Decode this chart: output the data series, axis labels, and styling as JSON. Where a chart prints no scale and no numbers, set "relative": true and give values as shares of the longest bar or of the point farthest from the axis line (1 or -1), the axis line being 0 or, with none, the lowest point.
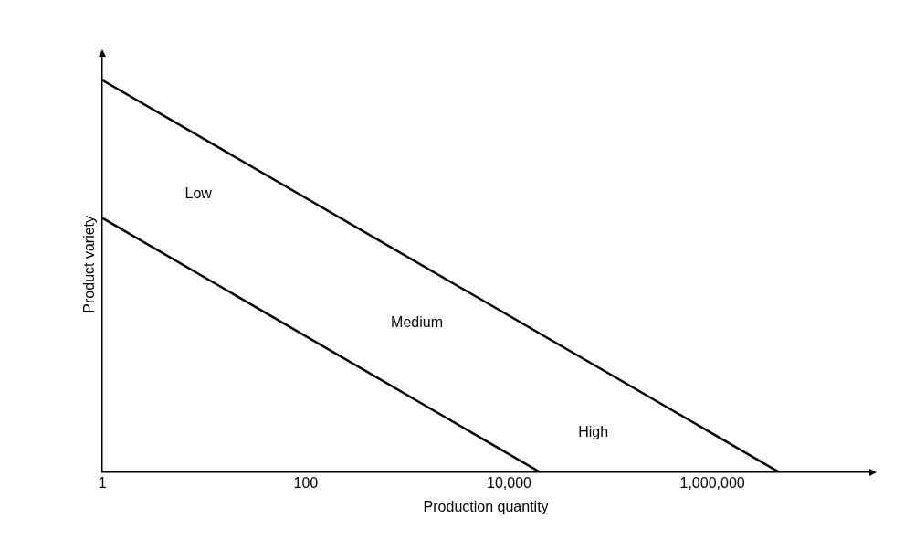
{
  "chart_data": {
    "type": "line",
    "relative": true,
    "log": "x",
    "xlabel": "Production quantity",
    "ylabel": "Product variety",
    "xlim": [
      1,
      35000000
    ],
    "xticks": [
      1,
      100,
      {
        "value": 10000,
        "label": "10,000"
      },
      {
        "value": 1000000,
        "label": "1,000,000"
      }
    ],
    "grid": false,
    "legend": false,
    "marker": "none",
    "line_style": "solid",
    "series": [
      {
        "color": "#000000",
        "x": [
          1,
          4500000
        ],
        "values": [
          1,
          0
        ]
      },
      {
        "color": "#000000",
        "x": [
          1,
          20000
        ],
        "values": [
          0.648,
          0
        ]
      }
    ],
    "annotations": [
      "Low",
      "Medium",
      "High"
    ]
  }
}
